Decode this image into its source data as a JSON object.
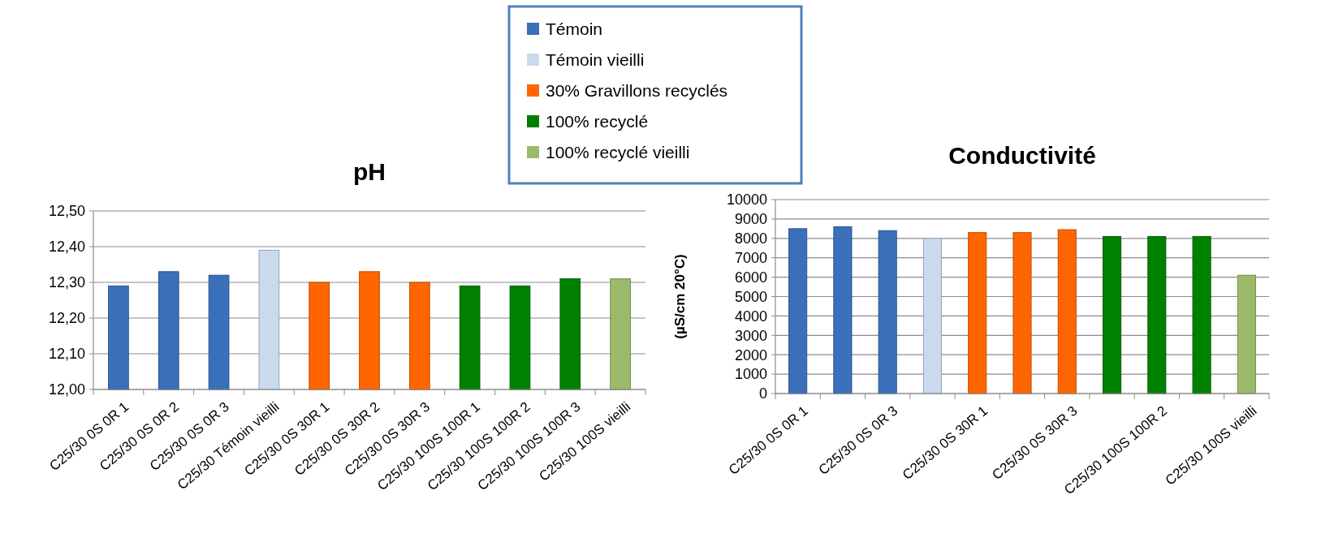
{
  "chart_data": [
    {
      "type": "bar",
      "title": "pH",
      "stacked": true,
      "grid": "y",
      "legend": "top",
      "categories": [
        "C25/30 0S 0R 1",
        "C25/30 0S 0R 2",
        "C25/30 0S 0R 3",
        "C25/30 Témoin vieilli",
        "C25/30 0S 30R 1",
        "C25/30 0S 30R 2",
        "C25/30 0S 30R 3",
        "C25/30 100S 100R 1",
        "C25/30 100S 100R 2",
        "C25/30 100S 100R 3",
        "C25/30 100S vieilli"
      ],
      "ylim": [
        12.0,
        12.5
      ],
      "yticks": [
        {
          "value": 12.0,
          "label": "12,00"
        },
        {
          "value": 12.1,
          "label": "12,10"
        },
        {
          "value": 12.2,
          "label": "12,20"
        },
        {
          "value": 12.3,
          "label": "12,30"
        },
        {
          "value": 12.4,
          "label": "12,40"
        },
        {
          "value": 12.5,
          "label": "12,50"
        }
      ],
      "series": [
        {
          "name": "Témoin",
          "color": "#3a6fba",
          "values": [
            12.29,
            12.33,
            12.32,
            null,
            null,
            null,
            null,
            null,
            null,
            null,
            null
          ]
        },
        {
          "name": "Témoin vieilli",
          "color": "#c9d9ee",
          "values": [
            null,
            null,
            null,
            12.39,
            null,
            null,
            null,
            null,
            null,
            null,
            null
          ]
        },
        {
          "name": "30% Gravillons recyclés",
          "color": "#ff6600",
          "values": [
            null,
            null,
            null,
            null,
            12.3,
            12.33,
            12.3,
            null,
            null,
            null,
            null
          ]
        },
        {
          "name": "100% recyclé",
          "color": "#008000",
          "values": [
            null,
            null,
            null,
            null,
            null,
            null,
            null,
            12.29,
            12.29,
            12.31,
            null
          ]
        },
        {
          "name": "100% recyclé vieilli",
          "color": "#9bbb6a",
          "values": [
            null,
            null,
            null,
            null,
            null,
            null,
            null,
            null,
            null,
            null,
            12.31
          ]
        }
      ]
    },
    {
      "type": "bar",
      "title": "Conductivité",
      "ylabel": "(µS/cm 20°C)",
      "stacked": true,
      "grid": "y",
      "categories": [
        "C25/30 0S 0R 1",
        null,
        "C25/30 0S 0R 3",
        null,
        "C25/30 0S 30R 1",
        null,
        "C25/30 0S 30R 3",
        null,
        "C25/30 100S 100R 2",
        null,
        "C25/30 100S vieilli"
      ],
      "ylim": [
        0,
        10000
      ],
      "yticks": [
        0,
        1000,
        2000,
        3000,
        4000,
        5000,
        6000,
        7000,
        8000,
        9000,
        10000
      ],
      "series": [
        {
          "color": "#3a6fba",
          "values": [
            8500,
            8600,
            8400,
            null,
            null,
            null,
            null,
            null,
            null,
            null,
            null
          ]
        },
        {
          "color": "#c9d9ee",
          "values": [
            null,
            null,
            null,
            8000,
            null,
            null,
            null,
            null,
            null,
            null,
            null
          ]
        },
        {
          "color": "#ff6600",
          "values": [
            null,
            null,
            null,
            null,
            8300,
            8300,
            8450,
            null,
            null,
            null,
            null
          ]
        },
        {
          "color": "#008000",
          "values": [
            null,
            null,
            null,
            null,
            null,
            null,
            null,
            8100,
            8100,
            8100,
            null
          ]
        },
        {
          "color": "#9bbb6a",
          "values": [
            null,
            null,
            null,
            null,
            null,
            null,
            null,
            null,
            null,
            null,
            6100
          ]
        }
      ]
    }
  ]
}
